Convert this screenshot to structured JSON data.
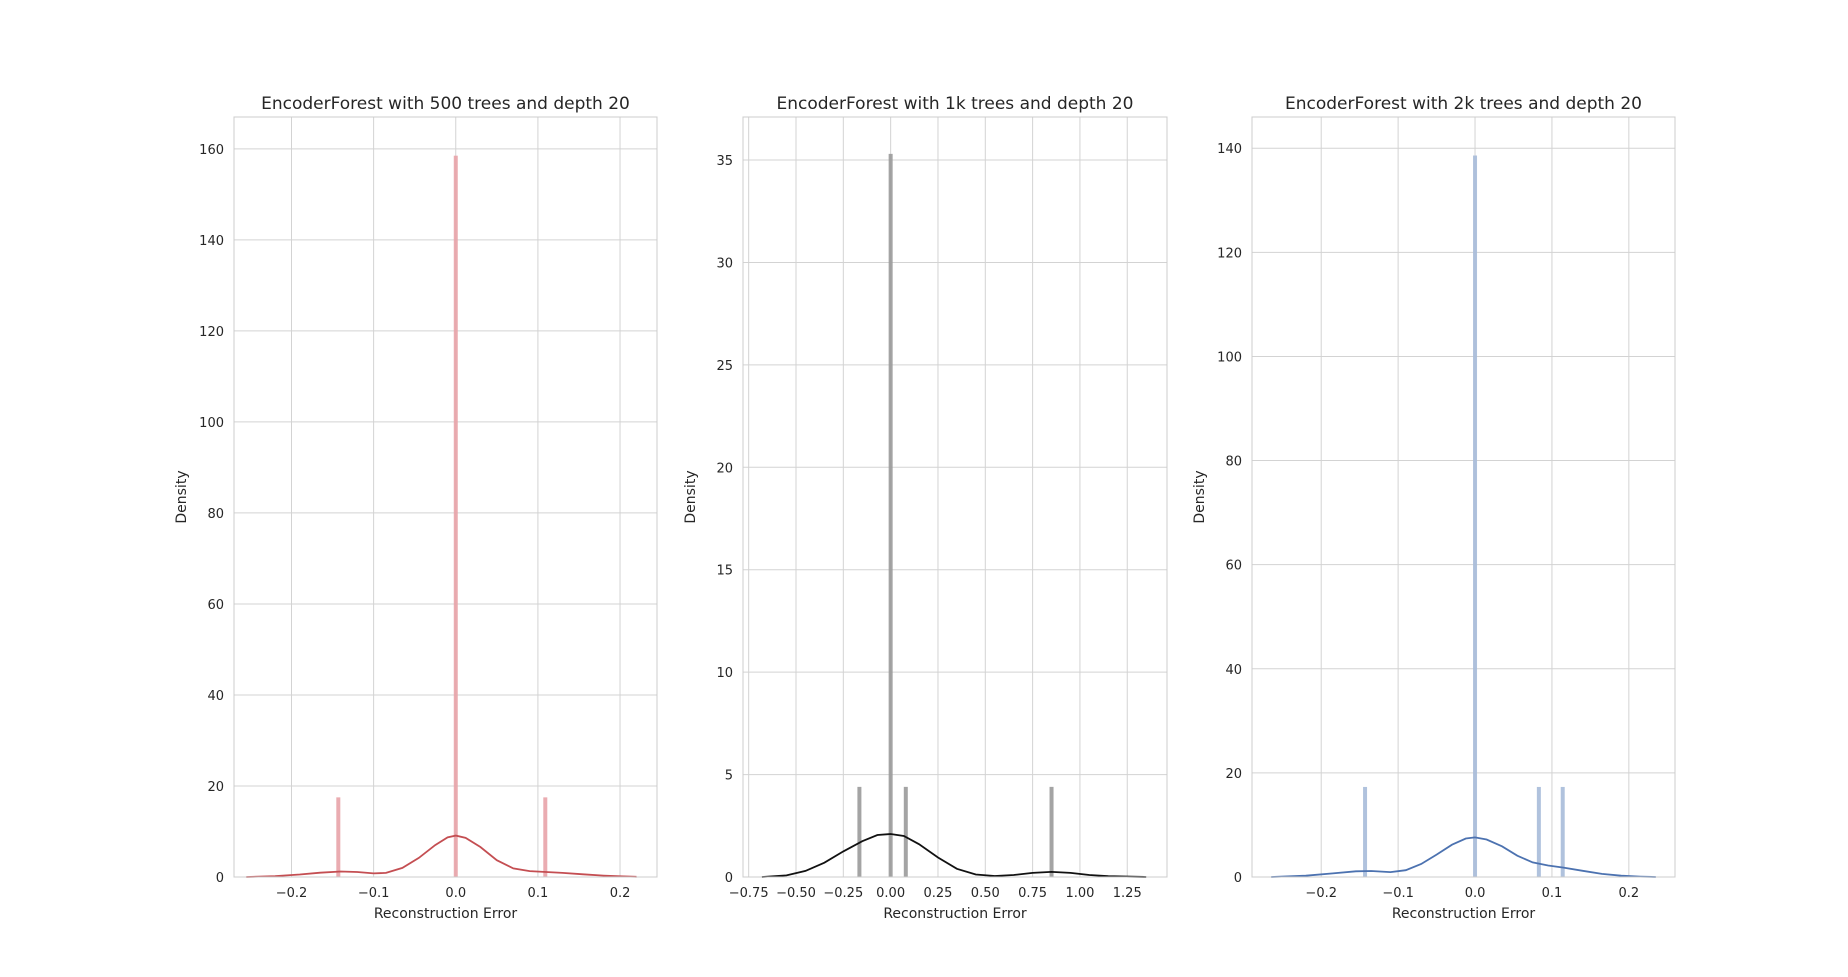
{
  "chart_data": [
    {
      "type": "histogram_kde",
      "title": "EncoderForest with 500 trees and depth 20",
      "xlabel": "Reconstruction Error",
      "ylabel": "Density",
      "xlim": [
        -0.27,
        0.245
      ],
      "ylim": [
        0,
        167
      ],
      "xticks": [
        -0.2,
        -0.1,
        0.0,
        0.1,
        0.2
      ],
      "xtick_labels": [
        "−0.2",
        "−0.1",
        "0.0",
        "0.1",
        "0.2"
      ],
      "yticks": [
        0,
        20,
        40,
        60,
        80,
        100,
        120,
        140,
        160
      ],
      "ytick_labels": [
        "0",
        "20",
        "40",
        "60",
        "80",
        "100",
        "120",
        "140",
        "160"
      ],
      "grid": true,
      "colors": {
        "hist": "#e8a3a8",
        "kde": "#c44e52"
      },
      "bars": [
        {
          "x": -0.143,
          "value": 17.5
        },
        {
          "x": 0.0,
          "value": 158.5
        },
        {
          "x": 0.109,
          "value": 17.5
        }
      ],
      "kde": [
        [
          -0.255,
          0.0
        ],
        [
          -0.22,
          0.2
        ],
        [
          -0.19,
          0.55
        ],
        [
          -0.165,
          0.95
        ],
        [
          -0.14,
          1.2
        ],
        [
          -0.12,
          1.1
        ],
        [
          -0.1,
          0.8
        ],
        [
          -0.085,
          0.9
        ],
        [
          -0.065,
          2.0
        ],
        [
          -0.045,
          4.2
        ],
        [
          -0.025,
          7.0
        ],
        [
          -0.01,
          8.7
        ],
        [
          0.0,
          9.1
        ],
        [
          0.012,
          8.6
        ],
        [
          0.03,
          6.6
        ],
        [
          0.05,
          3.7
        ],
        [
          0.07,
          1.9
        ],
        [
          0.09,
          1.3
        ],
        [
          0.11,
          1.1
        ],
        [
          0.13,
          0.9
        ],
        [
          0.155,
          0.6
        ],
        [
          0.18,
          0.3
        ],
        [
          0.2,
          0.15
        ],
        [
          0.22,
          0.05
        ]
      ]
    },
    {
      "type": "histogram_kde",
      "title": "EncoderForest with 1k trees and depth 20",
      "xlabel": "Reconstruction Error",
      "ylabel": "Density",
      "xlim": [
        -0.78,
        1.46
      ],
      "ylim": [
        0,
        37.1
      ],
      "xticks": [
        -0.75,
        -0.5,
        -0.25,
        0.0,
        0.25,
        0.5,
        0.75,
        1.0,
        1.25
      ],
      "xtick_labels": [
        "−0.75",
        "−0.50",
        "−0.25",
        "0.00",
        "0.25",
        "0.50",
        "0.75",
        "1.00",
        "1.25"
      ],
      "yticks": [
        0,
        5,
        10,
        15,
        20,
        25,
        30,
        35
      ],
      "ytick_labels": [
        "0",
        "5",
        "10",
        "15",
        "20",
        "25",
        "30",
        "35"
      ],
      "grid": true,
      "colors": {
        "hist": "#9a9a9a",
        "kde": "#111111"
      },
      "bars": [
        {
          "x": -0.165,
          "value": 4.4
        },
        {
          "x": 0.0,
          "value": 35.3
        },
        {
          "x": 0.08,
          "value": 4.4
        },
        {
          "x": 0.85,
          "value": 4.4
        }
      ],
      "kde": [
        [
          -0.68,
          0.0
        ],
        [
          -0.55,
          0.08
        ],
        [
          -0.45,
          0.3
        ],
        [
          -0.35,
          0.7
        ],
        [
          -0.25,
          1.25
        ],
        [
          -0.15,
          1.75
        ],
        [
          -0.07,
          2.05
        ],
        [
          0.0,
          2.1
        ],
        [
          0.07,
          2.0
        ],
        [
          0.15,
          1.6
        ],
        [
          0.25,
          0.95
        ],
        [
          0.35,
          0.4
        ],
        [
          0.45,
          0.12
        ],
        [
          0.55,
          0.05
        ],
        [
          0.65,
          0.1
        ],
        [
          0.75,
          0.2
        ],
        [
          0.85,
          0.25
        ],
        [
          0.95,
          0.2
        ],
        [
          1.05,
          0.1
        ],
        [
          1.15,
          0.04
        ],
        [
          1.35,
          0.0
        ]
      ]
    },
    {
      "type": "histogram_kde",
      "title": "EncoderForest with 2k trees and depth 20",
      "xlabel": "Reconstruction Error",
      "ylabel": "Density",
      "xlim": [
        -0.29,
        0.26
      ],
      "ylim": [
        0,
        146
      ],
      "xticks": [
        -0.2,
        -0.1,
        0.0,
        0.1,
        0.2
      ],
      "xtick_labels": [
        "−0.2",
        "−0.1",
        "0.0",
        "0.1",
        "0.2"
      ],
      "yticks": [
        0,
        20,
        40,
        60,
        80,
        100,
        120,
        140
      ],
      "ytick_labels": [
        "0",
        "20",
        "40",
        "60",
        "80",
        "100",
        "120",
        "140"
      ],
      "grid": true,
      "colors": {
        "hist": "#a7bbd9",
        "kde": "#4c72b0"
      },
      "bars": [
        {
          "x": -0.143,
          "value": 17.3
        },
        {
          "x": 0.0,
          "value": 138.6
        },
        {
          "x": 0.083,
          "value": 17.3
        },
        {
          "x": 0.114,
          "value": 17.3
        }
      ],
      "kde": [
        [
          -0.265,
          0.0
        ],
        [
          -0.22,
          0.25
        ],
        [
          -0.185,
          0.7
        ],
        [
          -0.155,
          1.1
        ],
        [
          -0.135,
          1.15
        ],
        [
          -0.11,
          0.95
        ],
        [
          -0.09,
          1.3
        ],
        [
          -0.07,
          2.5
        ],
        [
          -0.05,
          4.3
        ],
        [
          -0.03,
          6.2
        ],
        [
          -0.012,
          7.4
        ],
        [
          0.0,
          7.6
        ],
        [
          0.015,
          7.2
        ],
        [
          0.035,
          5.9
        ],
        [
          0.055,
          4.1
        ],
        [
          0.075,
          2.8
        ],
        [
          0.095,
          2.2
        ],
        [
          0.115,
          1.8
        ],
        [
          0.14,
          1.2
        ],
        [
          0.165,
          0.6
        ],
        [
          0.19,
          0.25
        ],
        [
          0.215,
          0.08
        ],
        [
          0.235,
          0.0
        ]
      ]
    }
  ]
}
